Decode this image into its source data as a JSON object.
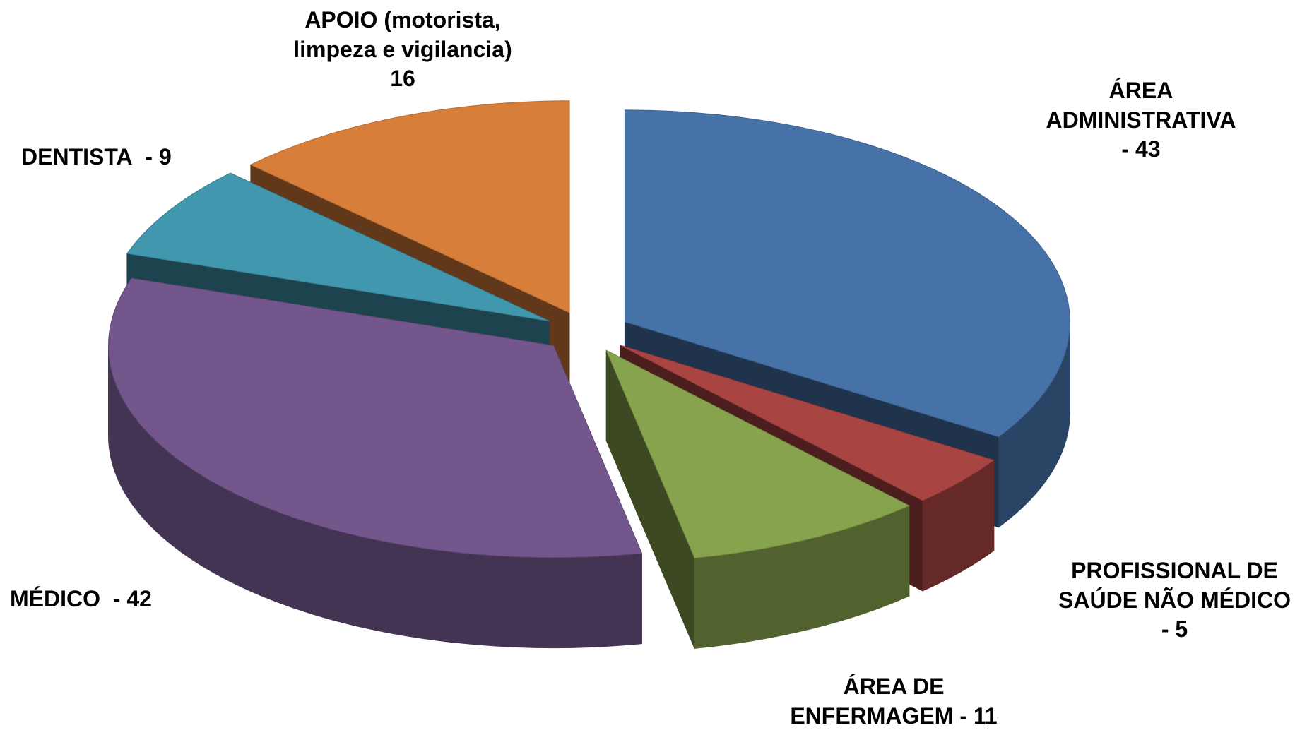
{
  "chart_data": {
    "type": "pie",
    "categories": [
      "ÁREA ADMINISTRATIVA",
      "PROFISSIONAL  DE SAÚDE NÃO MÉDICO",
      "ÁREA DE ENFERMAGEM",
      "MÉDICO",
      "DENTISTA",
      "APOIO (motorista, limpeza e vigilancia)"
    ],
    "values": [
      43,
      5,
      11,
      42,
      9,
      16
    ],
    "value_labels": [
      "- 43",
      "- 5",
      "- 11",
      "- 42",
      "- 9",
      "16"
    ],
    "colors": [
      "#4672a8",
      "#a84442",
      "#87a34d",
      "#72568c",
      "#4197ad",
      "#d77f3a"
    ]
  }
}
